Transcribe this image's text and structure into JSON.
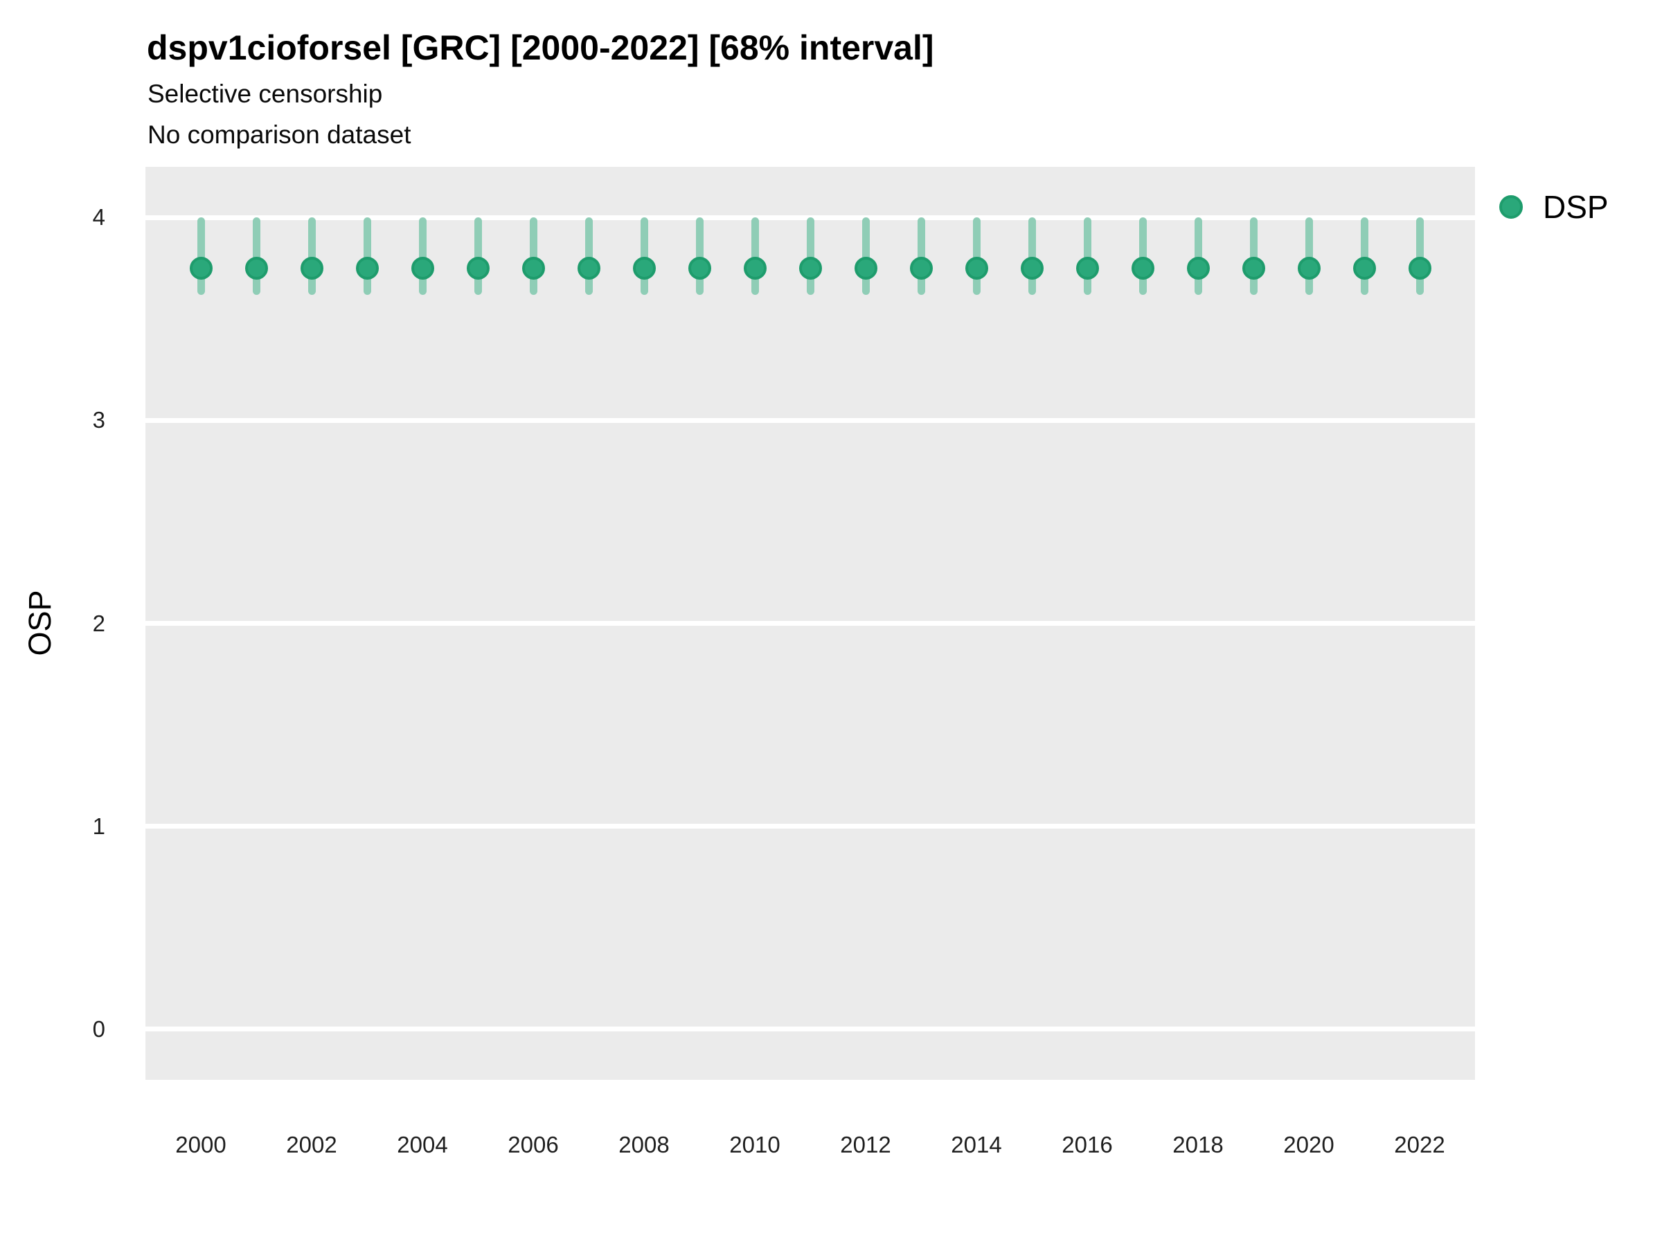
{
  "header": {
    "title": "dspv1cioforsel [GRC] [2000-2022] [68% interval]",
    "subtitle1": "Selective censorship",
    "subtitle2": "No comparison dataset"
  },
  "legend": {
    "position": "right",
    "items": [
      {
        "label": "DSP",
        "color": "#2AA87A",
        "border_color": "#1E9C6C"
      }
    ]
  },
  "chart_data": {
    "type": "scatter",
    "subtype": "pointrange",
    "title": "dspv1cioforsel [GRC] [2000-2022] [68% interval]",
    "subtitle": "Selective censorship",
    "caption": "No comparison dataset",
    "interval": "68%",
    "xlabel": "",
    "ylabel": "OSP",
    "xlim": [
      1999,
      2023
    ],
    "ylim": [
      -0.25,
      4.25
    ],
    "x_ticks": [
      2000,
      2002,
      2004,
      2006,
      2008,
      2010,
      2012,
      2014,
      2016,
      2018,
      2020,
      2022
    ],
    "y_ticks": [
      0,
      1,
      2,
      3,
      4
    ],
    "grid": "horizontal-major-only",
    "legend_position": "right",
    "panel_bg": "#EBEBEB",
    "grid_color": "#FFFFFF",
    "series": [
      {
        "name": "DSP",
        "point_color": "#2AA87A",
        "point_border_color": "#1E9C6C",
        "range_color": "#8FCDB6",
        "x": [
          2000,
          2001,
          2002,
          2003,
          2004,
          2005,
          2006,
          2007,
          2008,
          2009,
          2010,
          2011,
          2012,
          2013,
          2014,
          2015,
          2016,
          2017,
          2018,
          2019,
          2020,
          2021,
          2022
        ],
        "y": [
          3.75,
          3.75,
          3.75,
          3.75,
          3.75,
          3.75,
          3.75,
          3.75,
          3.75,
          3.75,
          3.75,
          3.75,
          3.75,
          3.75,
          3.75,
          3.75,
          3.75,
          3.75,
          3.75,
          3.75,
          3.75,
          3.75,
          3.75
        ],
        "y_low": [
          3.62,
          3.62,
          3.62,
          3.62,
          3.62,
          3.62,
          3.62,
          3.62,
          3.62,
          3.62,
          3.62,
          3.62,
          3.62,
          3.62,
          3.62,
          3.62,
          3.62,
          3.62,
          3.62,
          3.62,
          3.62,
          3.62,
          3.62
        ],
        "y_high": [
          4.0,
          4.0,
          4.0,
          4.0,
          4.0,
          4.0,
          4.0,
          4.0,
          4.0,
          4.0,
          4.0,
          4.0,
          4.0,
          4.0,
          4.0,
          4.0,
          4.0,
          4.0,
          4.0,
          4.0,
          4.0,
          4.0,
          4.0
        ]
      }
    ]
  }
}
